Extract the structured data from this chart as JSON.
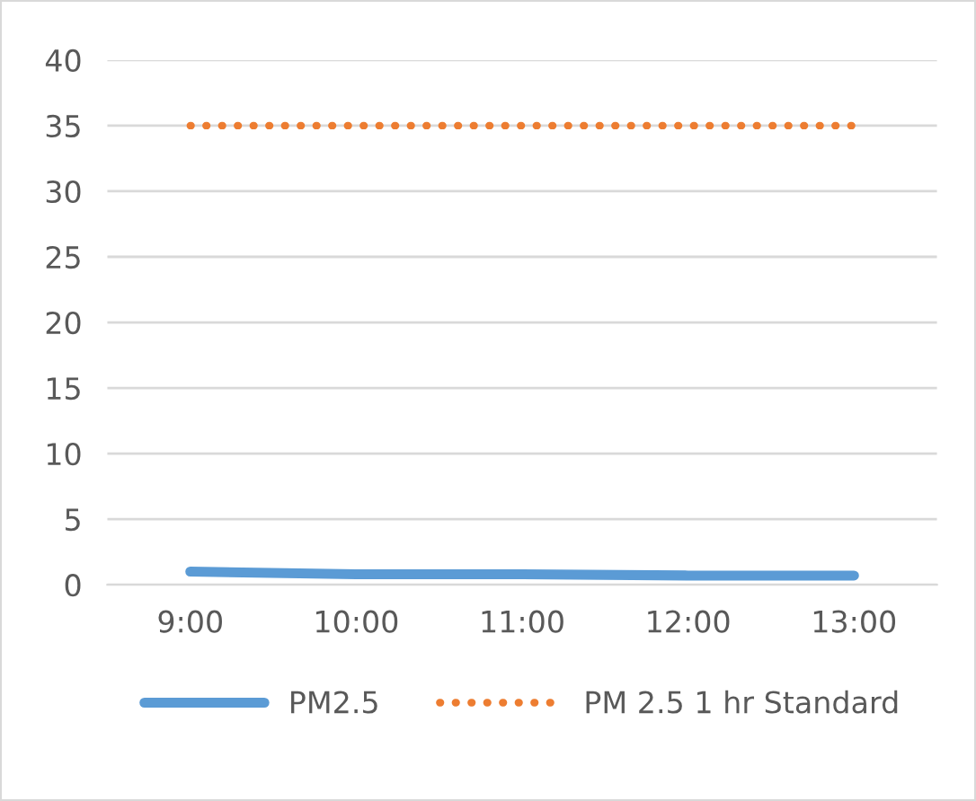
{
  "chart_data": {
    "type": "line",
    "categories": [
      "9:00",
      "10:00",
      "11:00",
      "12:00",
      "13:00"
    ],
    "series": [
      {
        "name": "PM2.5",
        "color": "#5b9bd5",
        "values": [
          1.0,
          0.8,
          0.8,
          0.7,
          0.7
        ],
        "line_style": "solid"
      },
      {
        "name": "PM 2.5 1 hr Standard",
        "color": "#ed7d31",
        "values": [
          35,
          35,
          35,
          35,
          35
        ],
        "line_style": "dotted"
      }
    ],
    "ylim": [
      0,
      40
    ],
    "yticks": [
      0,
      5,
      10,
      15,
      20,
      25,
      30,
      35,
      40
    ],
    "grid": "y",
    "legend": "bottom",
    "marker": "none"
  }
}
